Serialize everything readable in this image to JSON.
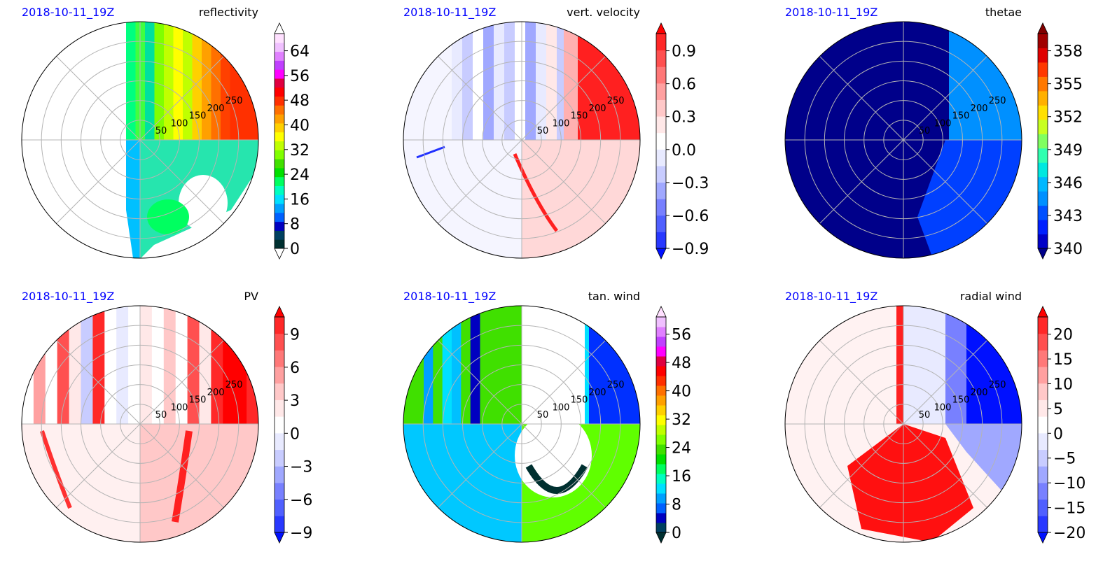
{
  "figure": {
    "date_label": "2018-10-11_19Z",
    "date_color": "#0000ff"
  },
  "chart_data": [
    {
      "type": "heatmap",
      "projection": "polar",
      "title": "reflectivity",
      "date_label": "2018-10-11_19Z",
      "radial_ticks": [
        "50",
        "100",
        "150",
        "200",
        "250"
      ],
      "colorbar": {
        "ticks": [
          "0",
          "8",
          "16",
          "24",
          "32",
          "40",
          "48",
          "56",
          "64"
        ],
        "extend": "both",
        "colors": [
          "#ffffff",
          "#003030",
          "#004060",
          "#0000c0",
          "#0060ff",
          "#00a0ff",
          "#00e0ff",
          "#00ffc0",
          "#00ff60",
          "#00e000",
          "#40e000",
          "#80ff00",
          "#c0ff00",
          "#ffff00",
          "#ffd000",
          "#ffa000",
          "#ff7000",
          "#ff3000",
          "#ff0000",
          "#e00040",
          "#ff00ff",
          "#c040ff",
          "#e080ff",
          "#f0c0ff",
          "#ffe0ff",
          "#ffffff"
        ]
      }
    },
    {
      "type": "heatmap",
      "projection": "polar",
      "title": "vert. velocity",
      "date_label": "2018-10-11_19Z",
      "radial_ticks": [
        "50",
        "100",
        "150",
        "200",
        "250"
      ],
      "colorbar": {
        "ticks": [
          "−0.9",
          "−0.6",
          "−0.3",
          "0.0",
          "0.3",
          "0.6",
          "0.9"
        ],
        "extend": "both",
        "colors": [
          "#0010ff",
          "#2838ff",
          "#5060ff",
          "#7880ff",
          "#a0a8ff",
          "#c8ccff",
          "#e8eaff",
          "#ffffff",
          "#ffe8e8",
          "#ffc8c8",
          "#ffa0a0",
          "#ff7878",
          "#ff5050",
          "#ff2828",
          "#ff0000"
        ]
      }
    },
    {
      "type": "heatmap",
      "projection": "polar",
      "title": "thetae",
      "date_label": "2018-10-11_19Z",
      "radial_ticks": [
        "50",
        "100",
        "150",
        "200",
        "250"
      ],
      "colorbar": {
        "ticks": [
          "340",
          "343",
          "346",
          "349",
          "352",
          "355",
          "358"
        ],
        "extend": "both",
        "colors": [
          "#00008a",
          "#0000c8",
          "#0020ff",
          "#0050ff",
          "#0090ff",
          "#00b8ff",
          "#00e8e0",
          "#30ffb0",
          "#80ff60",
          "#c8ff20",
          "#ffe000",
          "#ffb000",
          "#ff7800",
          "#ff3800",
          "#e00000",
          "#a00000",
          "#800000"
        ]
      }
    },
    {
      "type": "heatmap",
      "projection": "polar",
      "title": "PV",
      "date_label": "2018-10-11_19Z",
      "radial_ticks": [
        "50",
        "100",
        "150",
        "200",
        "250"
      ],
      "colorbar": {
        "ticks": [
          "−9",
          "−6",
          "−3",
          "0",
          "3",
          "6",
          "9"
        ],
        "extend": "both",
        "colors": [
          "#0010ff",
          "#2838ff",
          "#5060ff",
          "#7880ff",
          "#a0a8ff",
          "#c8ccff",
          "#e8eaff",
          "#ffffff",
          "#ffe8e8",
          "#ffc8c8",
          "#ffa0a0",
          "#ff7878",
          "#ff5050",
          "#ff2828",
          "#ff0000"
        ]
      }
    },
    {
      "type": "heatmap",
      "projection": "polar",
      "title": "tan. wind",
      "date_label": "2018-10-11_19Z",
      "radial_ticks": [
        "50",
        "100",
        "150",
        "200",
        "250"
      ],
      "colorbar": {
        "ticks": [
          "0",
          "8",
          "16",
          "24",
          "32",
          "40",
          "48",
          "56"
        ],
        "extend": "both",
        "colors": [
          "#003030",
          "#004060",
          "#0000c0",
          "#0060ff",
          "#00a0ff",
          "#00e0ff",
          "#00ffc0",
          "#00ff60",
          "#00e000",
          "#40e000",
          "#80ff00",
          "#c0ff00",
          "#ffff00",
          "#ffd000",
          "#ffa000",
          "#ff7000",
          "#ff3000",
          "#ff0000",
          "#e00040",
          "#ff00ff",
          "#c040ff",
          "#e080ff",
          "#f0c0ff",
          "#ffe0ff"
        ]
      }
    },
    {
      "type": "heatmap",
      "projection": "polar",
      "title": "radial wind",
      "date_label": "2018-10-11_19Z",
      "radial_ticks": [
        "50",
        "100",
        "150",
        "200",
        "250"
      ],
      "colorbar": {
        "ticks": [
          "−20",
          "−15",
          "−10",
          "−5",
          "0",
          "5",
          "10",
          "15",
          "20"
        ],
        "extend": "both",
        "colors": [
          "#0010ff",
          "#2838ff",
          "#5060ff",
          "#7880ff",
          "#a0a8ff",
          "#c8ccff",
          "#e8eaff",
          "#ffffff",
          "#ffe8e8",
          "#ffc8c8",
          "#ffa0a0",
          "#ff7878",
          "#ff5050",
          "#ff2828",
          "#ff0000"
        ]
      }
    }
  ]
}
